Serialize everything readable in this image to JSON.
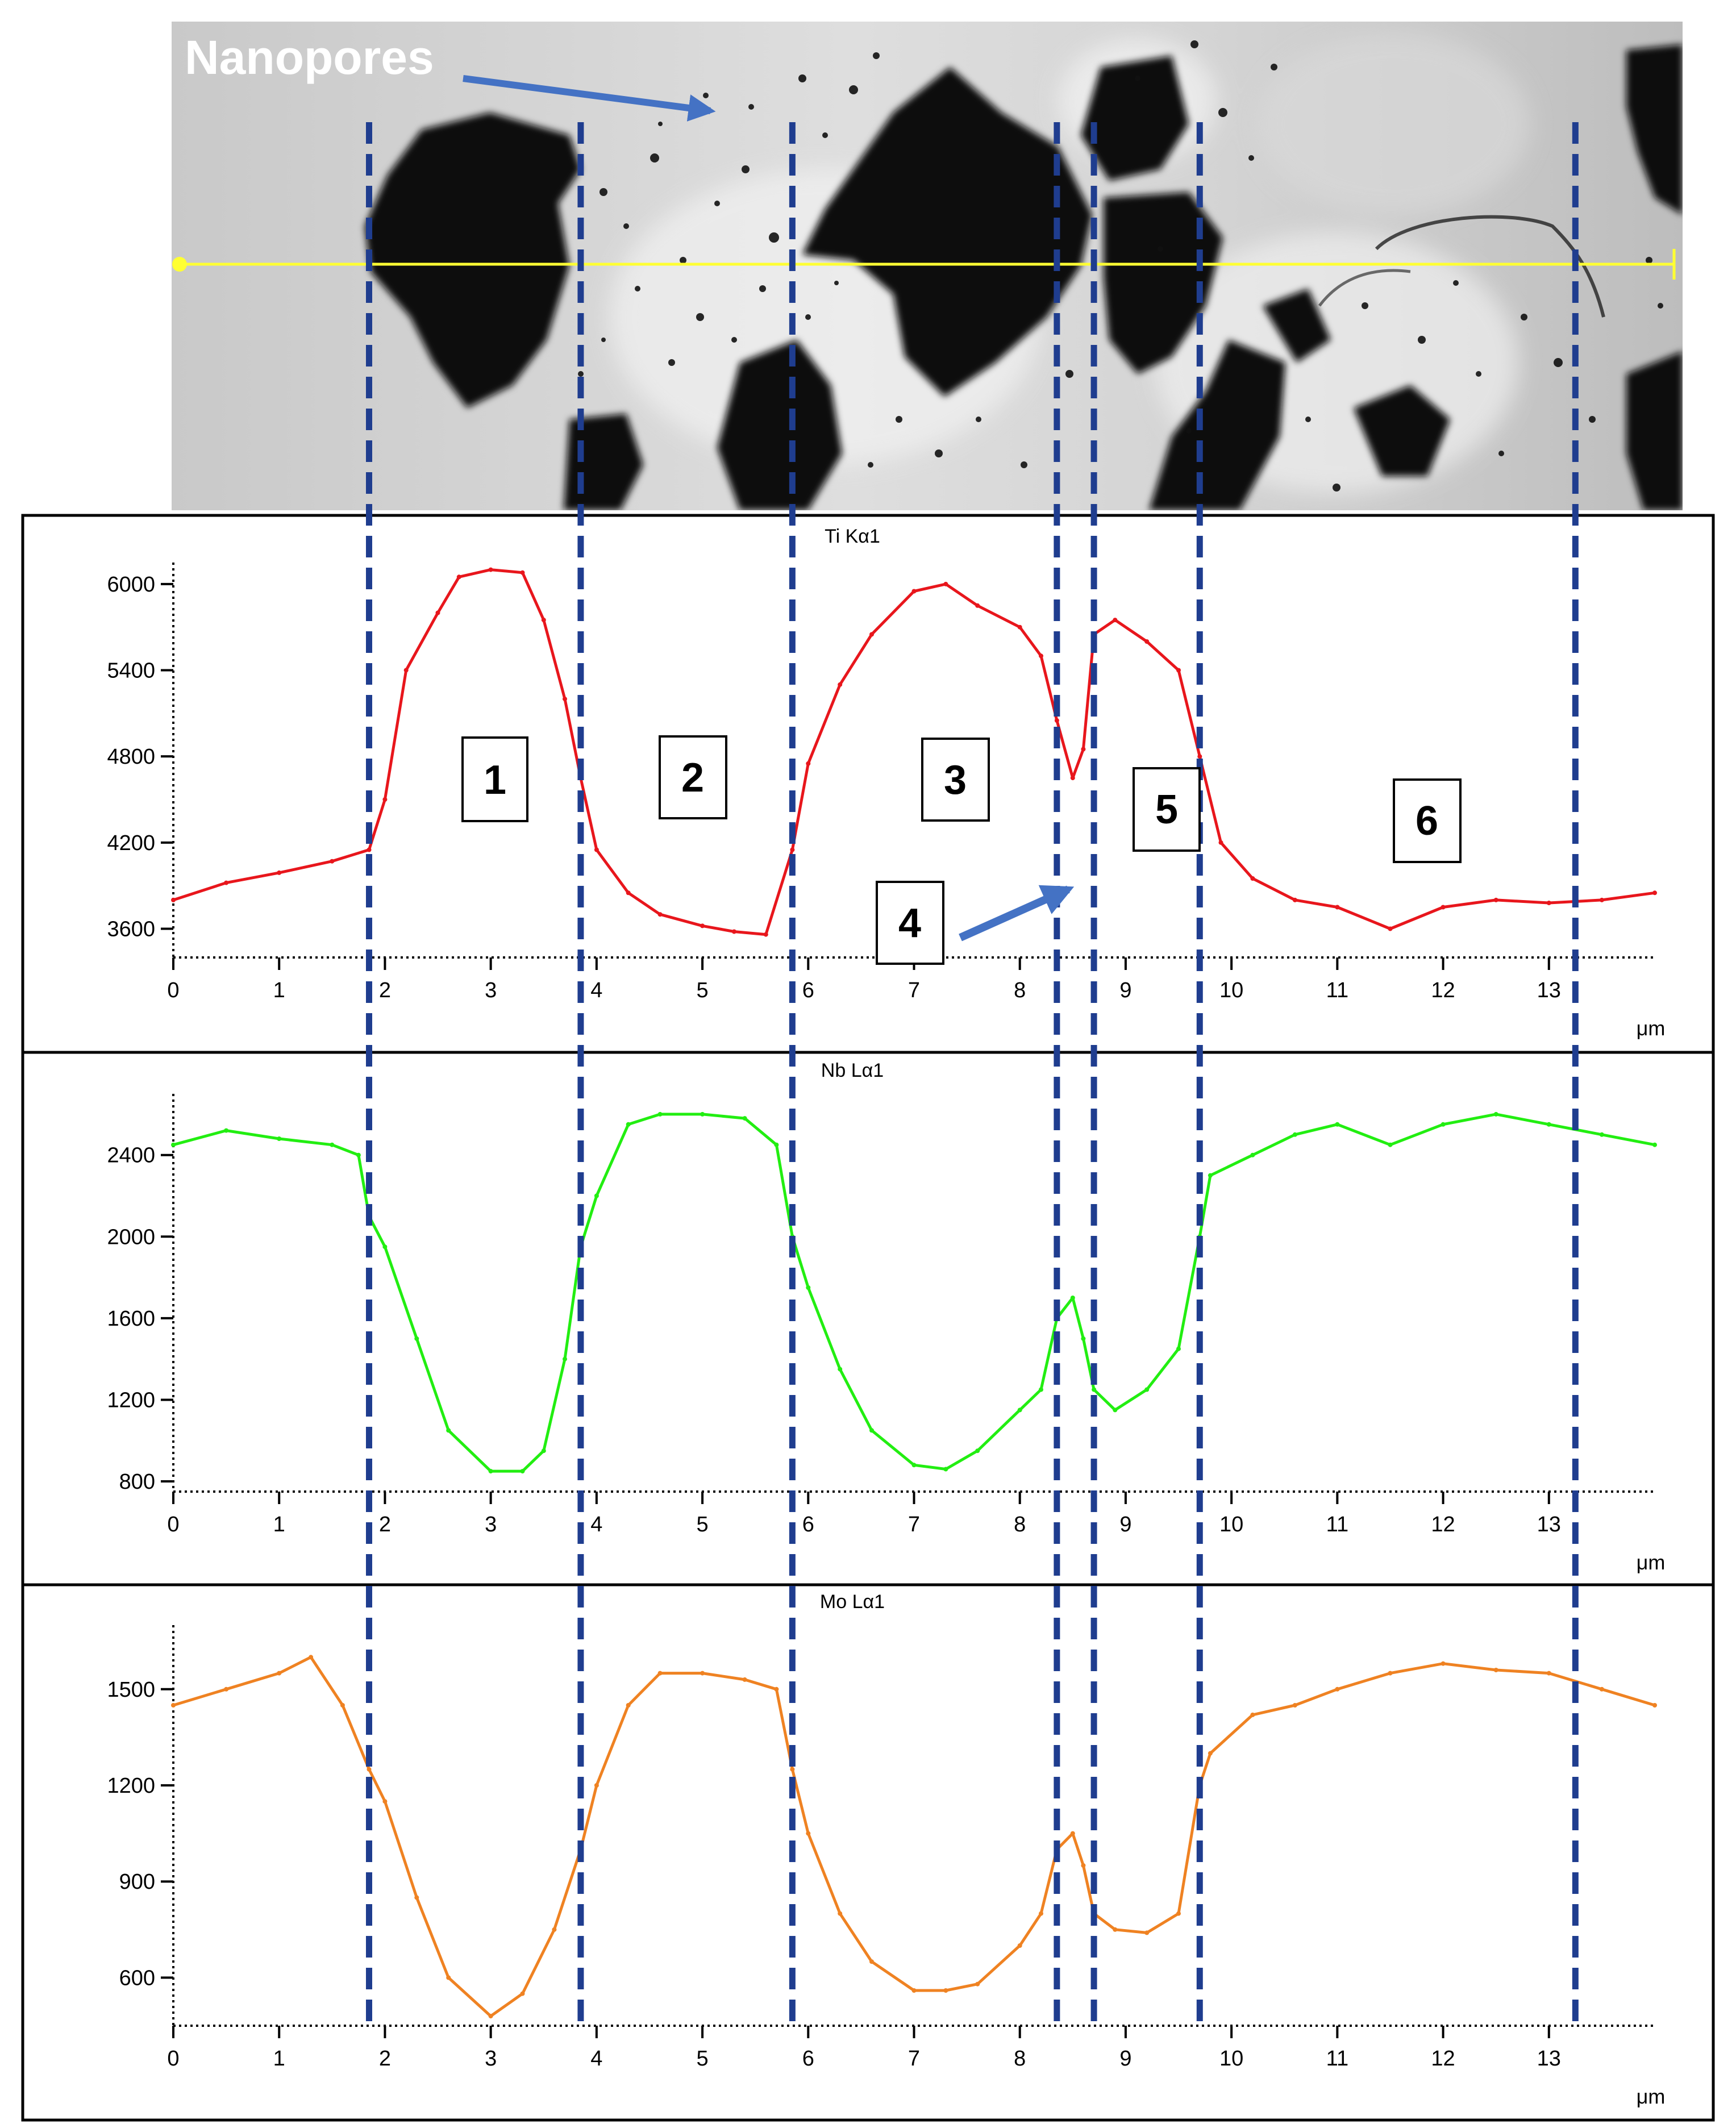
{
  "image_annotation": {
    "nanopores_label": "Nanopores",
    "region_labels": [
      "1",
      "2",
      "3",
      "4",
      "5",
      "6"
    ],
    "arrow_color": "#4472C4",
    "scan_line_color": "#FFFF33",
    "boundary_line_color": "#1F3D8F",
    "boundaries_um": [
      1.85,
      3.85,
      5.85,
      8.35,
      8.7,
      9.7,
      13.25
    ]
  },
  "chart_data": [
    {
      "type": "line",
      "title": "Ti Kα1",
      "xlabel": "μm",
      "ylabel": "",
      "xlim": [
        0,
        14
      ],
      "ylim": [
        3400,
        6150
      ],
      "xticks": [
        0,
        1,
        2,
        3,
        4,
        5,
        6,
        7,
        8,
        9,
        10,
        11,
        12,
        13
      ],
      "yticks": [
        3600,
        4200,
        4800,
        5400,
        6000
      ],
      "color": "#E8161C",
      "grid": false,
      "x": [
        0,
        0.5,
        1,
        1.5,
        1.85,
        2,
        2.2,
        2.5,
        2.7,
        3,
        3.3,
        3.5,
        3.7,
        3.85,
        4,
        4.3,
        4.6,
        5,
        5.3,
        5.6,
        5.85,
        6,
        6.3,
        6.6,
        7,
        7.3,
        7.6,
        8,
        8.2,
        8.35,
        8.5,
        8.6,
        8.7,
        8.9,
        9.2,
        9.5,
        9.7,
        9.9,
        10.2,
        10.6,
        11,
        11.5,
        12,
        12.5,
        13,
        13.5,
        14
      ],
      "y": [
        3800,
        3920,
        3990,
        4070,
        4150,
        4500,
        5400,
        5800,
        6050,
        6100,
        6080,
        5750,
        5200,
        4650,
        4150,
        3850,
        3700,
        3620,
        3580,
        3560,
        4150,
        4750,
        5300,
        5650,
        5950,
        6000,
        5850,
        5700,
        5500,
        5050,
        4650,
        4850,
        5650,
        5750,
        5600,
        5400,
        4800,
        4200,
        3950,
        3800,
        3750,
        3600,
        3750,
        3800,
        3780,
        3800,
        3850
      ]
    },
    {
      "type": "line",
      "title": "Nb Lα1",
      "xlabel": "μm",
      "ylabel": "",
      "xlim": [
        0,
        14
      ],
      "ylim": [
        750,
        2700
      ],
      "xticks": [
        0,
        1,
        2,
        3,
        4,
        5,
        6,
        7,
        8,
        9,
        10,
        11,
        12,
        13
      ],
      "yticks": [
        800,
        1200,
        1600,
        2000,
        2400
      ],
      "color": "#22EE11",
      "grid": false,
      "x": [
        0,
        0.5,
        1,
        1.5,
        1.75,
        1.85,
        2,
        2.3,
        2.6,
        3,
        3.3,
        3.5,
        3.7,
        3.85,
        4,
        4.3,
        4.6,
        5,
        5.4,
        5.7,
        5.85,
        6,
        6.3,
        6.6,
        7,
        7.3,
        7.6,
        8,
        8.2,
        8.35,
        8.5,
        8.6,
        8.7,
        8.9,
        9.2,
        9.5,
        9.7,
        9.8,
        10.2,
        10.6,
        11,
        11.5,
        12,
        12.5,
        13,
        13.5,
        14
      ],
      "y": [
        2450,
        2520,
        2480,
        2450,
        2400,
        2100,
        1950,
        1500,
        1050,
        850,
        850,
        950,
        1400,
        1950,
        2200,
        2550,
        2600,
        2600,
        2580,
        2450,
        2000,
        1750,
        1350,
        1050,
        880,
        860,
        950,
        1150,
        1250,
        1600,
        1700,
        1500,
        1250,
        1150,
        1250,
        1450,
        2000,
        2300,
        2400,
        2500,
        2550,
        2450,
        2550,
        2600,
        2550,
        2500,
        2450
      ]
    },
    {
      "type": "line",
      "title": "Mo Lα1",
      "xlabel": "μm",
      "ylabel": "",
      "xlim": [
        0,
        14
      ],
      "ylim": [
        450,
        1700
      ],
      "xticks": [
        0,
        1,
        2,
        3,
        4,
        5,
        6,
        7,
        8,
        9,
        10,
        11,
        12,
        13
      ],
      "yticks": [
        600,
        900,
        1200,
        1500
      ],
      "color": "#EF8222",
      "grid": false,
      "x": [
        0,
        0.5,
        1,
        1.3,
        1.6,
        1.85,
        2,
        2.3,
        2.6,
        3,
        3.3,
        3.6,
        3.85,
        4,
        4.3,
        4.6,
        5,
        5.4,
        5.7,
        5.85,
        6,
        6.3,
        6.6,
        7,
        7.3,
        7.6,
        8,
        8.2,
        8.35,
        8.5,
        8.6,
        8.7,
        8.9,
        9.2,
        9.5,
        9.7,
        9.8,
        10.2,
        10.6,
        11,
        11.5,
        12,
        12.5,
        13,
        13.5,
        14
      ],
      "y": [
        1450,
        1500,
        1550,
        1600,
        1450,
        1250,
        1150,
        850,
        600,
        480,
        550,
        750,
        1000,
        1200,
        1450,
        1550,
        1550,
        1530,
        1500,
        1250,
        1050,
        800,
        650,
        560,
        560,
        580,
        700,
        800,
        1000,
        1050,
        950,
        800,
        750,
        740,
        800,
        1200,
        1300,
        1420,
        1450,
        1500,
        1550,
        1580,
        1560,
        1550,
        1500,
        1450
      ]
    }
  ]
}
